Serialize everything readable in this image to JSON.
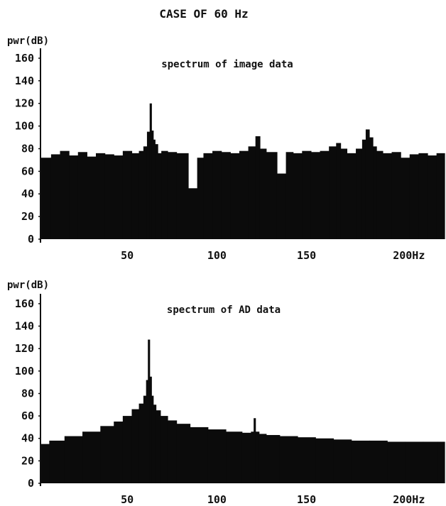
{
  "figure": {
    "title": "CASE OF 60 Hz"
  },
  "chart_data": [
    {
      "type": "bar",
      "title": "spectrum of image data",
      "ylabel": "pwr(dB)",
      "xlabel": "",
      "xlim": [
        2,
        227
      ],
      "ylim": [
        0,
        165
      ],
      "yticks": [
        "0",
        "20",
        "40",
        "60",
        "80",
        "100",
        "120",
        "140",
        "160"
      ],
      "xticks": [
        "50",
        "100",
        "150",
        "200Hz"
      ],
      "grid": false,
      "series": [
        {
          "x": [
            5,
            10,
            15,
            20,
            25,
            30,
            35,
            40,
            45,
            50,
            55,
            58,
            60,
            62,
            63,
            64,
            65,
            66,
            68,
            70,
            75,
            80,
            88,
            90,
            95,
            100,
            105,
            110,
            115,
            120,
            123,
            125,
            130,
            137,
            140,
            145,
            150,
            155,
            160,
            165,
            168,
            170,
            175,
            180,
            182,
            184,
            186,
            188,
            190,
            195,
            200,
            205,
            210,
            215,
            220,
            225
          ],
          "values": [
            72,
            75,
            78,
            74,
            77,
            73,
            76,
            75,
            74,
            78,
            76,
            78,
            82,
            95,
            120,
            96,
            88,
            84,
            76,
            78,
            77,
            76,
            45,
            72,
            76,
            78,
            77,
            76,
            78,
            82,
            91,
            80,
            77,
            58,
            77,
            76,
            78,
            77,
            78,
            82,
            85,
            80,
            76,
            80,
            88,
            97,
            90,
            82,
            78,
            76,
            77,
            72,
            75,
            76,
            74,
            76
          ]
        }
      ]
    },
    {
      "type": "bar",
      "title": "spectrum of AD data",
      "ylabel": "pwr(dB)",
      "xlabel": "",
      "xlim": [
        2,
        227
      ],
      "ylim": [
        0,
        165
      ],
      "yticks": [
        "0",
        "20",
        "40",
        "60",
        "80",
        "100",
        "120",
        "140",
        "160"
      ],
      "xticks": [
        "50",
        "100",
        "150",
        "200Hz"
      ],
      "grid": false,
      "series": [
        {
          "x": [
            3,
            10,
            20,
            30,
            40,
            45,
            50,
            55,
            58,
            60,
            61,
            62,
            63,
            64,
            65,
            67,
            70,
            75,
            80,
            90,
            100,
            110,
            118,
            120,
            121,
            122,
            125,
            130,
            140,
            150,
            160,
            170,
            180,
            190,
            200,
            210,
            220,
            226
          ],
          "values": [
            35,
            38,
            42,
            46,
            51,
            55,
            60,
            66,
            71,
            78,
            92,
            128,
            95,
            78,
            70,
            65,
            60,
            56,
            53,
            50,
            48,
            46,
            45,
            46,
            58,
            46,
            44,
            43,
            42,
            41,
            40,
            39,
            38,
            38,
            37,
            37,
            37,
            37
          ]
        }
      ]
    }
  ]
}
